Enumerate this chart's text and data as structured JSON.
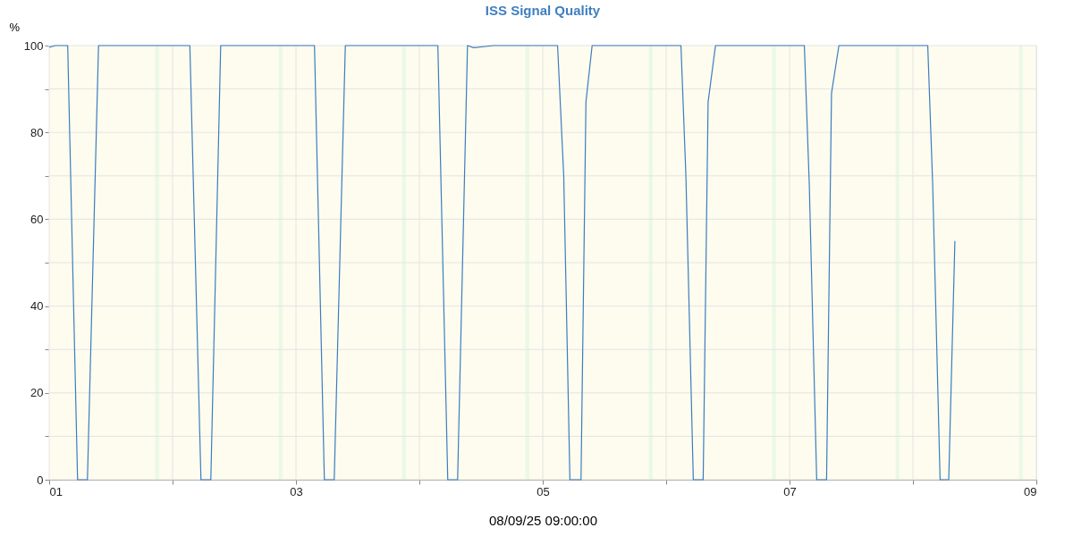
{
  "chart_data": {
    "type": "line",
    "title": "ISS Signal Quality",
    "xlabel": "08/09/25 09:00:00",
    "ylabel": "%",
    "xlim": [
      1,
      9
    ],
    "xticks": [
      {
        "value": 1,
        "label": "01"
      },
      {
        "value": 2,
        "label": null
      },
      {
        "value": 3,
        "label": "03"
      },
      {
        "value": 4,
        "label": null
      },
      {
        "value": 5,
        "label": "05"
      },
      {
        "value": 6,
        "label": null
      },
      {
        "value": 7,
        "label": "07"
      },
      {
        "value": 8,
        "label": null
      },
      {
        "value": 9,
        "label": "09"
      }
    ],
    "ylim": [
      0,
      100
    ],
    "yticks": [
      0,
      {
        "value": 10,
        "label": null
      },
      20,
      {
        "value": 30,
        "label": null
      },
      40,
      {
        "value": 50,
        "label": null
      },
      60,
      {
        "value": 70,
        "label": null
      },
      80,
      {
        "value": 90,
        "label": null
      },
      100
    ],
    "grid": true,
    "marker": "none",
    "line_style": "solid",
    "bands": [
      {
        "axis": "x",
        "from": 1,
        "to": 9,
        "color": "#fdfcee"
      },
      {
        "axis": "x",
        "from": 1.86,
        "to": 1.89,
        "color": "#eaf8e8"
      },
      {
        "axis": "x",
        "from": 2.86,
        "to": 2.89,
        "color": "#eaf8e8"
      },
      {
        "axis": "x",
        "from": 3.86,
        "to": 3.89,
        "color": "#eaf8e8"
      },
      {
        "axis": "x",
        "from": 4.86,
        "to": 4.89,
        "color": "#eaf8e8"
      },
      {
        "axis": "x",
        "from": 5.86,
        "to": 5.89,
        "color": "#eaf8e8"
      },
      {
        "axis": "x",
        "from": 6.86,
        "to": 6.89,
        "color": "#eaf8e8"
      },
      {
        "axis": "x",
        "from": 7.86,
        "to": 7.89,
        "color": "#eaf8e8"
      },
      {
        "axis": "x",
        "from": 8.86,
        "to": 8.89,
        "color": "#eaf8e8"
      }
    ],
    "series": [
      {
        "color": "#3b7dc0",
        "x": [
          1.0,
          1.05,
          1.15,
          1.23,
          1.31,
          1.4,
          1.6,
          1.8,
          2.14,
          2.23,
          2.31,
          2.39,
          2.6,
          2.8,
          3.15,
          3.23,
          3.31,
          3.4,
          3.6,
          3.8,
          4.15,
          4.23,
          4.31,
          4.39,
          4.44,
          4.6,
          4.8,
          5.12,
          5.17,
          5.22,
          5.31,
          5.35,
          5.4,
          5.6,
          5.8,
          6.12,
          6.16,
          6.22,
          6.3,
          6.34,
          6.4,
          6.6,
          6.8,
          7.12,
          7.16,
          7.22,
          7.3,
          7.34,
          7.4,
          7.6,
          7.8,
          8.12,
          8.16,
          8.22,
          8.29,
          8.34
        ],
        "values": [
          99.6,
          100,
          100,
          0,
          0,
          100,
          100,
          100,
          100,
          0,
          0,
          100,
          100,
          100,
          100,
          0,
          0,
          100,
          100,
          100,
          100,
          0,
          0,
          100,
          99.5,
          100,
          100,
          100,
          70,
          0,
          0,
          87,
          100,
          100,
          100,
          100,
          70,
          0,
          0,
          87,
          100,
          100,
          100,
          100,
          68,
          0,
          0,
          89,
          100,
          100,
          100,
          100,
          68,
          0,
          0,
          55
        ]
      }
    ]
  }
}
